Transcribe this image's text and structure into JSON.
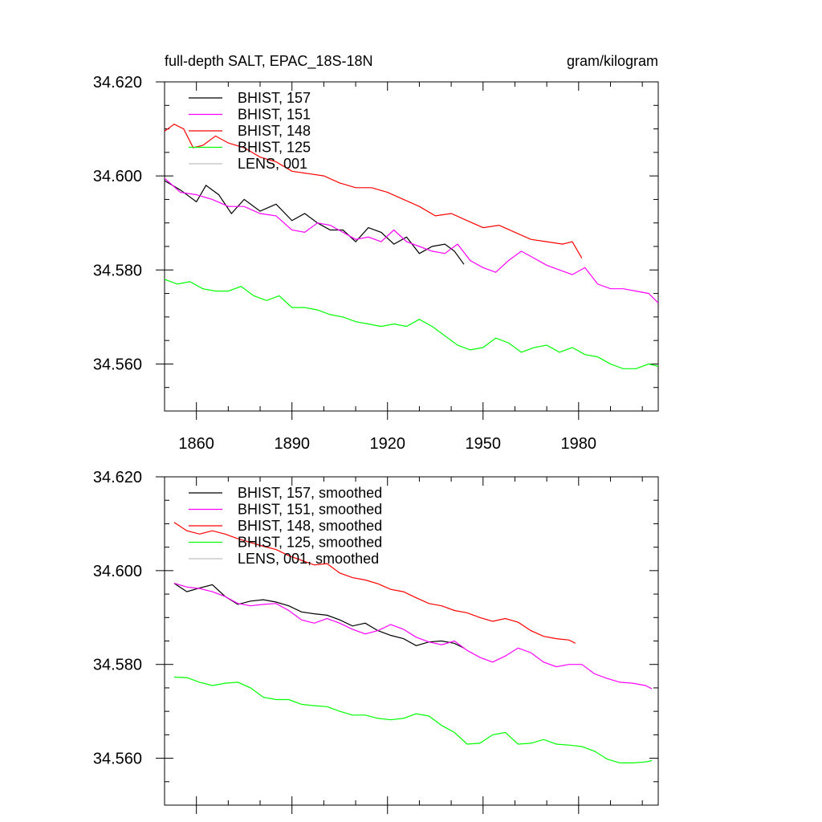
{
  "chart_data": [
    {
      "type": "line",
      "title": "full-depth SALT, EPAC_18S-18N",
      "units_label": "gram/kilogram",
      "xlim": [
        1850,
        2005
      ],
      "ylim": [
        34.55,
        34.62
      ],
      "x_tick_labels": [
        "1860",
        "1890",
        "1920",
        "1950",
        "1980"
      ],
      "y_tick_labels": [
        "34.620",
        "34.600",
        "34.580",
        "34.560"
      ],
      "legend_position": "top-left",
      "series": [
        {
          "name": "BHIST, 157",
          "color": "#000000",
          "x": [
            1850,
            1855,
            1860,
            1863,
            1867,
            1871,
            1875,
            1880,
            1885,
            1890,
            1894,
            1898,
            1902,
            1906,
            1910,
            1914,
            1918,
            1922,
            1926,
            1930,
            1934,
            1938,
            1941,
            1944
          ],
          "y": [
            34.599,
            34.597,
            34.5945,
            34.598,
            34.596,
            34.592,
            34.595,
            34.5925,
            34.594,
            34.5905,
            34.592,
            34.59,
            34.5885,
            34.5885,
            34.586,
            34.589,
            34.588,
            34.5855,
            34.587,
            34.5835,
            34.585,
            34.5855,
            34.584,
            34.5812
          ]
        },
        {
          "name": "BHIST, 151",
          "color": "#ff00ff",
          "x": [
            1850,
            1855,
            1860,
            1865,
            1870,
            1875,
            1880,
            1885,
            1890,
            1894,
            1898,
            1902,
            1906,
            1910,
            1914,
            1918,
            1922,
            1926,
            1930,
            1934,
            1938,
            1942,
            1946,
            1950,
            1954,
            1958,
            1962,
            1966,
            1970,
            1974,
            1978,
            1982,
            1986,
            1990,
            1994,
            1998,
            2002,
            2005
          ],
          "y": [
            34.5995,
            34.5965,
            34.596,
            34.595,
            34.5935,
            34.5935,
            34.592,
            34.5915,
            34.5885,
            34.588,
            34.59,
            34.5895,
            34.588,
            34.5865,
            34.587,
            34.586,
            34.5885,
            34.586,
            34.585,
            34.584,
            34.5835,
            34.5855,
            34.582,
            34.5805,
            34.5795,
            34.582,
            34.584,
            34.5825,
            34.581,
            34.58,
            34.579,
            34.5805,
            34.577,
            34.576,
            34.576,
            34.5755,
            34.575,
            34.573
          ]
        },
        {
          "name": "BHIST, 148",
          "color": "#ff0000",
          "x": [
            1850,
            1853,
            1856,
            1859,
            1862,
            1866,
            1870,
            1875,
            1880,
            1885,
            1890,
            1895,
            1900,
            1905,
            1910,
            1915,
            1920,
            1925,
            1930,
            1935,
            1940,
            1945,
            1950,
            1955,
            1960,
            1965,
            1970,
            1975,
            1978,
            1981
          ],
          "y": [
            34.6095,
            34.611,
            34.61,
            34.606,
            34.6065,
            34.6085,
            34.607,
            34.606,
            34.604,
            34.603,
            34.601,
            34.6005,
            34.6,
            34.5985,
            34.5975,
            34.5975,
            34.5965,
            34.595,
            34.5935,
            34.5915,
            34.592,
            34.5905,
            34.589,
            34.5895,
            34.588,
            34.5865,
            34.586,
            34.5855,
            34.586,
            34.5825
          ]
        },
        {
          "name": "BHIST, 125",
          "color": "#00ff00",
          "x": [
            1850,
            1854,
            1858,
            1862,
            1866,
            1870,
            1874,
            1878,
            1882,
            1886,
            1890,
            1894,
            1898,
            1902,
            1906,
            1910,
            1914,
            1918,
            1922,
            1926,
            1930,
            1934,
            1938,
            1942,
            1946,
            1950,
            1954,
            1958,
            1962,
            1966,
            1970,
            1974,
            1978,
            1982,
            1986,
            1990,
            1994,
            1998,
            2002,
            2005
          ],
          "y": [
            34.578,
            34.577,
            34.5775,
            34.576,
            34.5755,
            34.5755,
            34.5765,
            34.5745,
            34.5735,
            34.5745,
            34.572,
            34.572,
            34.5715,
            34.5705,
            34.57,
            34.569,
            34.5685,
            34.568,
            34.5685,
            34.568,
            34.5695,
            34.568,
            34.566,
            34.564,
            34.563,
            34.5635,
            34.5655,
            34.5645,
            34.5625,
            34.5635,
            34.564,
            34.5625,
            34.5635,
            34.562,
            34.5615,
            34.56,
            34.559,
            34.559,
            34.56,
            34.5595
          ]
        },
        {
          "name": "LENS, 001",
          "color": "#bfbfbf",
          "x": [],
          "y": []
        }
      ]
    },
    {
      "type": "line",
      "title": "",
      "xlim": [
        1850,
        2005
      ],
      "ylim": [
        34.55,
        34.62
      ],
      "y_tick_labels": [
        "34.620",
        "34.600",
        "34.580",
        "34.560"
      ],
      "legend_position": "top-left",
      "series": [
        {
          "name": "BHIST, 157, smoothed",
          "color": "#000000",
          "x": [
            1853,
            1857,
            1861,
            1865,
            1869,
            1873,
            1877,
            1881,
            1885,
            1889,
            1893,
            1897,
            1901,
            1905,
            1909,
            1913,
            1917,
            1921,
            1925,
            1929,
            1933,
            1937,
            1941,
            1944
          ],
          "y": [
            34.5973,
            34.5955,
            34.5963,
            34.597,
            34.5945,
            34.5928,
            34.5935,
            34.5938,
            34.5933,
            34.5925,
            34.5912,
            34.5908,
            34.5905,
            34.5895,
            34.5882,
            34.5888,
            34.5872,
            34.5862,
            34.5855,
            34.584,
            34.5848,
            34.585,
            34.5845,
            34.5835
          ]
        },
        {
          "name": "BHIST, 151, smoothed",
          "color": "#ff00ff",
          "x": [
            1853,
            1857,
            1861,
            1865,
            1869,
            1873,
            1877,
            1881,
            1885,
            1889,
            1893,
            1897,
            1901,
            1905,
            1909,
            1913,
            1917,
            1921,
            1925,
            1929,
            1933,
            1937,
            1941,
            1945,
            1949,
            1953,
            1957,
            1961,
            1965,
            1969,
            1973,
            1977,
            1981,
            1985,
            1989,
            1993,
            1997,
            2001,
            2003
          ],
          "y": [
            34.5973,
            34.5965,
            34.5962,
            34.5955,
            34.5945,
            34.593,
            34.5925,
            34.5928,
            34.593,
            34.5915,
            34.5895,
            34.5888,
            34.5898,
            34.5888,
            34.5875,
            34.5865,
            34.5872,
            34.5885,
            34.5875,
            34.5858,
            34.5848,
            34.5842,
            34.585,
            34.583,
            34.5815,
            34.5805,
            34.5818,
            34.5835,
            34.5825,
            34.5805,
            34.5795,
            34.58,
            34.58,
            34.578,
            34.577,
            34.5762,
            34.576,
            34.5755,
            34.5748
          ]
        },
        {
          "name": "BHIST, 148, smoothed",
          "color": "#ff0000",
          "x": [
            1853,
            1857,
            1861,
            1865,
            1869,
            1873,
            1877,
            1881,
            1885,
            1889,
            1893,
            1897,
            1901,
            1905,
            1909,
            1913,
            1917,
            1921,
            1925,
            1929,
            1933,
            1937,
            1941,
            1945,
            1949,
            1953,
            1957,
            1961,
            1965,
            1969,
            1973,
            1977,
            1979
          ],
          "y": [
            34.6103,
            34.6085,
            34.6078,
            34.6085,
            34.6078,
            34.6068,
            34.606,
            34.6052,
            34.6045,
            34.6032,
            34.6022,
            34.6012,
            34.6015,
            34.5995,
            34.5985,
            34.598,
            34.5972,
            34.596,
            34.5955,
            34.5942,
            34.593,
            34.5925,
            34.5915,
            34.591,
            34.59,
            34.5892,
            34.5898,
            34.589,
            34.5872,
            34.586,
            34.5855,
            34.5852,
            34.5845
          ]
        },
        {
          "name": "BHIST, 125, smoothed",
          "color": "#00ff00",
          "x": [
            1853,
            1857,
            1861,
            1865,
            1869,
            1873,
            1877,
            1881,
            1885,
            1889,
            1893,
            1897,
            1901,
            1905,
            1909,
            1913,
            1917,
            1921,
            1925,
            1929,
            1933,
            1937,
            1941,
            1945,
            1949,
            1953,
            1957,
            1961,
            1965,
            1969,
            1973,
            1977,
            1981,
            1985,
            1989,
            1993,
            1997,
            2001,
            2003
          ],
          "y": [
            34.5773,
            34.5772,
            34.5762,
            34.5755,
            34.576,
            34.5762,
            34.575,
            34.573,
            34.5725,
            34.5725,
            34.5715,
            34.5712,
            34.571,
            34.57,
            34.5692,
            34.5692,
            34.5685,
            34.5682,
            34.5685,
            34.5695,
            34.569,
            34.567,
            34.5655,
            34.563,
            34.5632,
            34.565,
            34.5655,
            34.563,
            34.5632,
            34.564,
            34.563,
            34.5628,
            34.5625,
            34.5615,
            34.5598,
            34.559,
            34.559,
            34.5592,
            34.5595
          ]
        },
        {
          "name": "LENS, 001, smoothed",
          "color": "#bfbfbf",
          "x": [],
          "y": []
        }
      ]
    }
  ]
}
